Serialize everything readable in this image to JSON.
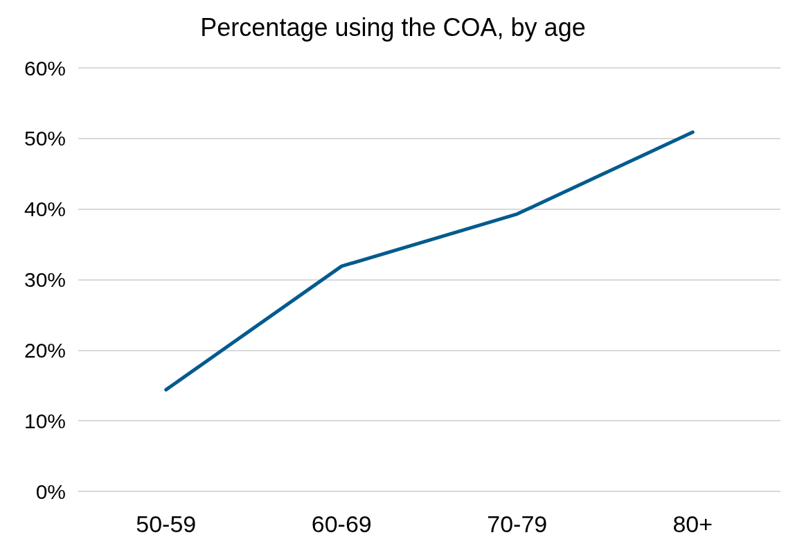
{
  "chart_data": {
    "type": "line",
    "title": "Percentage using the COA, by age",
    "categories": [
      "50-59",
      "60-69",
      "70-79",
      "80+"
    ],
    "series": [
      {
        "color": "#005b8e",
        "values": [
          14.4,
          31.9,
          39.3,
          50.9
        ]
      }
    ],
    "ylim": [
      0,
      60
    ],
    "yticks": [
      {
        "value": 0,
        "label": "0%"
      },
      {
        "value": 10,
        "label": "10%"
      },
      {
        "value": 20,
        "label": "20%"
      },
      {
        "value": 30,
        "label": "30%"
      },
      {
        "value": 40,
        "label": "40%"
      },
      {
        "value": 50,
        "label": "50%"
      },
      {
        "value": 60,
        "label": "60%"
      }
    ],
    "grid": "y",
    "marker": "none",
    "line_style": "solid"
  }
}
